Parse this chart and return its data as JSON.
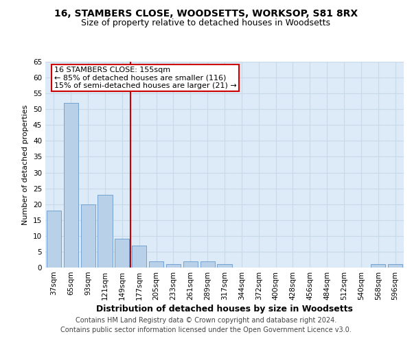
{
  "title1": "16, STAMBERS CLOSE, WOODSETTS, WORKSOP, S81 8RX",
  "title2": "Size of property relative to detached houses in Woodsetts",
  "xlabel": "Distribution of detached houses by size in Woodsetts",
  "ylabel": "Number of detached properties",
  "categories": [
    "37sqm",
    "65sqm",
    "93sqm",
    "121sqm",
    "149sqm",
    "177sqm",
    "205sqm",
    "233sqm",
    "261sqm",
    "289sqm",
    "317sqm",
    "344sqm",
    "372sqm",
    "400sqm",
    "428sqm",
    "456sqm",
    "484sqm",
    "512sqm",
    "540sqm",
    "568sqm",
    "596sqm"
  ],
  "values": [
    18,
    52,
    20,
    23,
    9,
    7,
    2,
    1,
    2,
    2,
    1,
    0,
    0,
    0,
    0,
    0,
    0,
    0,
    0,
    1,
    1
  ],
  "bar_color": "#b8d0e8",
  "bar_edge_color": "#6699cc",
  "redline_index": 4,
  "annotation_line1": "16 STAMBERS CLOSE: 155sqm",
  "annotation_line2": "← 85% of detached houses are smaller (116)",
  "annotation_line3": "15% of semi-detached houses are larger (21) →",
  "annotation_box_color": "#ffffff",
  "annotation_box_edge": "#cc0000",
  "redline_color": "#cc0000",
  "ylim": [
    0,
    65
  ],
  "yticks": [
    0,
    5,
    10,
    15,
    20,
    25,
    30,
    35,
    40,
    45,
    50,
    55,
    60,
    65
  ],
  "grid_color": "#c8daea",
  "background_color": "#ddeaf7",
  "footer1": "Contains HM Land Registry data © Crown copyright and database right 2024.",
  "footer2": "Contains public sector information licensed under the Open Government Licence v3.0.",
  "title1_fontsize": 10,
  "title2_fontsize": 9,
  "xlabel_fontsize": 9,
  "ylabel_fontsize": 8,
  "tick_fontsize": 7.5,
  "annotation_fontsize": 8,
  "footer_fontsize": 7
}
